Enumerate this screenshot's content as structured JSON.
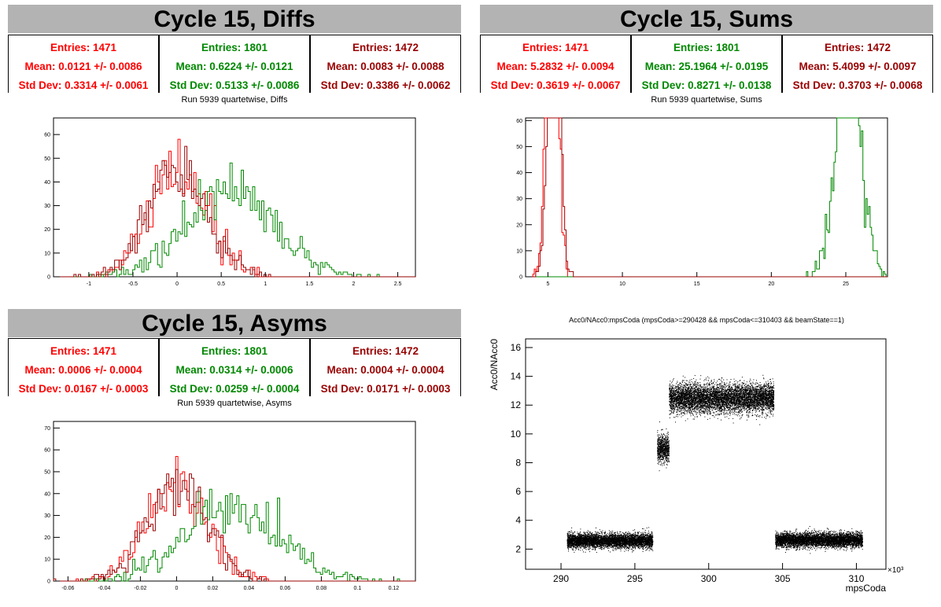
{
  "panels": {
    "diffs": {
      "title": "Cycle 15, Diffs",
      "subtitle": "Run 5939 quartetwise, Diffs",
      "stats": [
        {
          "entries": "Entries: 1471",
          "mean": "Mean: 0.0121 +/- 0.0086",
          "std": "Std Dev: 0.3314 +/- 0.0061",
          "color": "#ff0000"
        },
        {
          "entries": "Entries: 1801",
          "mean": "Mean: 0.6224 +/- 0.0121",
          "std": "Std Dev: 0.5133 +/- 0.0086",
          "color": "#008800"
        },
        {
          "entries": "Entries: 1472",
          "mean": "Mean: 0.0083 +/- 0.0088",
          "std": "Std Dev: 0.3386 +/- 0.0062",
          "color": "#990000"
        }
      ]
    },
    "sums": {
      "title": "Cycle 15, Sums",
      "subtitle": "Run 5939 quartetwise, Sums",
      "stats": [
        {
          "entries": "Entries: 1471",
          "mean": "Mean: 5.2832 +/- 0.0094",
          "std": "Std Dev: 0.3619 +/- 0.0067",
          "color": "#ff0000"
        },
        {
          "entries": "Entries: 1801",
          "mean": "Mean: 25.1964 +/- 0.0195",
          "std": "Std Dev: 0.8271 +/- 0.0138",
          "color": "#008800"
        },
        {
          "entries": "Entries: 1472",
          "mean": "Mean: 5.4099 +/- 0.0097",
          "std": "Std Dev: 0.3703 +/- 0.0068",
          "color": "#990000"
        }
      ]
    },
    "asyms": {
      "title": "Cycle 15, Asyms",
      "subtitle": "Run 5939 quartetwise, Asyms",
      "stats": [
        {
          "entries": "Entries: 1471",
          "mean": "Mean: 0.0006 +/- 0.0004",
          "std": "Std Dev: 0.0167 +/- 0.0003",
          "color": "#ff0000"
        },
        {
          "entries": "Entries: 1801",
          "mean": "Mean: 0.0314 +/- 0.0006",
          "std": "Std Dev: 0.0259 +/- 0.0004",
          "color": "#008800"
        },
        {
          "entries": "Entries: 1472",
          "mean": "Mean: 0.0004 +/- 0.0004",
          "std": "Std Dev: 0.0171 +/- 0.0003",
          "color": "#990000"
        }
      ]
    },
    "scatter": {
      "subtitle": "Acc0/NAcc0:mpsCoda (mpsCoda>=290428 && mpsCoda<=310403 && beamState==1)"
    }
  },
  "chart_data": [
    {
      "type": "histogram",
      "id": "diffs",
      "xlim": [
        -1.4,
        2.7
      ],
      "ylim": [
        0,
        67
      ],
      "xticks": [
        -1,
        -0.5,
        0,
        0.5,
        1,
        1.5,
        2,
        2.5
      ],
      "yticks": [
        0,
        10,
        20,
        30,
        40,
        50,
        60
      ],
      "series": [
        {
          "color": "#ff0000",
          "mean": 0.0121,
          "std": 0.3314,
          "entries": 1471
        },
        {
          "color": "#008800",
          "mean": 0.6224,
          "std": 0.5133,
          "entries": 1801
        },
        {
          "color": "#990000",
          "mean": 0.0083,
          "std": 0.3386,
          "entries": 1472
        }
      ]
    },
    {
      "type": "histogram",
      "id": "sums",
      "xlim": [
        3.5,
        27.8
      ],
      "ylim": [
        0,
        61
      ],
      "xticks": [
        5,
        10,
        15,
        20,
        25
      ],
      "yticks": [
        0,
        10,
        20,
        30,
        40,
        50,
        60
      ],
      "series": [
        {
          "color": "#ff0000",
          "mean": 5.2832,
          "std": 0.3619,
          "entries": 1471
        },
        {
          "color": "#008800",
          "mean": 25.1964,
          "std": 0.8271,
          "entries": 1801
        },
        {
          "color": "#990000",
          "mean": 5.4099,
          "std": 0.3703,
          "entries": 1472
        }
      ]
    },
    {
      "type": "histogram",
      "id": "asyms",
      "xlim": [
        -0.068,
        0.132
      ],
      "ylim": [
        0,
        73
      ],
      "xticks": [
        -0.06,
        -0.04,
        -0.02,
        0,
        0.02,
        0.04,
        0.06,
        0.08,
        0.1,
        0.12
      ],
      "yticks": [
        0,
        10,
        20,
        30,
        40,
        50,
        60,
        70
      ],
      "series": [
        {
          "color": "#ff0000",
          "mean": 0.0006,
          "std": 0.0167,
          "entries": 1471
        },
        {
          "color": "#008800",
          "mean": 0.0314,
          "std": 0.0259,
          "entries": 1801
        },
        {
          "color": "#990000",
          "mean": 0.0004,
          "std": 0.0171,
          "entries": 1472
        }
      ]
    },
    {
      "type": "scatter",
      "id": "scatter",
      "xlabel": "mpsCoda",
      "ylabel": "Acc0/NAcc0",
      "xexponent": "×10³",
      "xlim": [
        287.6,
        312.0
      ],
      "ylim": [
        0.6,
        16.6
      ],
      "xticks": [
        290,
        295,
        300,
        305,
        310
      ],
      "yticks": [
        2,
        4,
        6,
        8,
        10,
        12,
        14,
        16
      ],
      "clusters": [
        {
          "x": [
            290.4,
            296.2
          ],
          "y_mean": 2.6,
          "y_spread": 0.45
        },
        {
          "x": [
            296.5,
            297.3
          ],
          "y_mean": 9.0,
          "y_spread": 0.9
        },
        {
          "x": [
            297.3,
            304.4
          ],
          "y_mean": 12.5,
          "y_spread": 0.9
        },
        {
          "x": [
            304.5,
            310.4
          ],
          "y_mean": 2.65,
          "y_spread": 0.45
        }
      ]
    }
  ]
}
